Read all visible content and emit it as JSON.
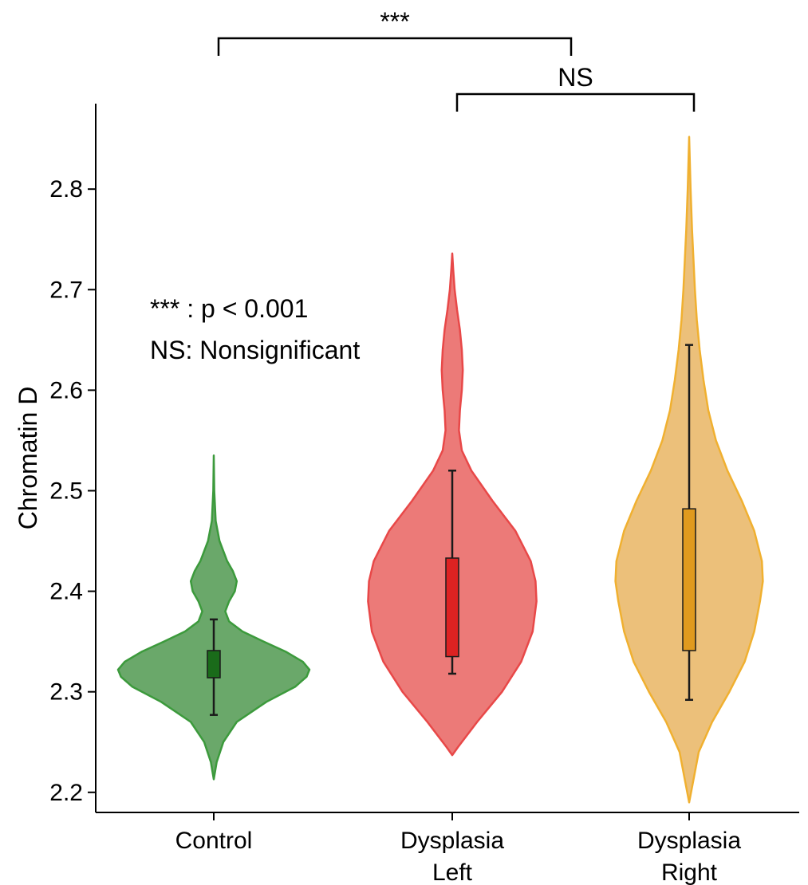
{
  "chart_data": {
    "type": "violin",
    "ylabel": "Chromatin D",
    "xlabel": "",
    "ylim": [
      2.18,
      2.885
    ],
    "yticks": [
      2.2,
      2.3,
      2.4,
      2.5,
      2.6,
      2.7,
      2.8
    ],
    "ytick_labels": [
      "2.2",
      "2.3",
      "2.4",
      "2.5",
      "2.6",
      "2.7",
      "2.8"
    ],
    "grid": false,
    "groups": [
      {
        "label_lines": [
          "Control"
        ],
        "fill": "#6aa86a",
        "edge": "#3c9a3c",
        "box_color": "#1a6b1a",
        "whisker_low": 2.277,
        "q1": 2.314,
        "median": 2.326,
        "q3": 2.341,
        "whisker_high": 2.372,
        "density": [
          [
            2.213,
            0
          ],
          [
            2.23,
            0.03
          ],
          [
            2.25,
            0.1
          ],
          [
            2.27,
            0.24
          ],
          [
            2.29,
            0.55
          ],
          [
            2.305,
            0.85
          ],
          [
            2.315,
            0.97
          ],
          [
            2.322,
            1.0
          ],
          [
            2.33,
            0.93
          ],
          [
            2.34,
            0.75
          ],
          [
            2.35,
            0.52
          ],
          [
            2.36,
            0.3
          ],
          [
            2.37,
            0.16
          ],
          [
            2.38,
            0.12
          ],
          [
            2.39,
            0.16
          ],
          [
            2.4,
            0.22
          ],
          [
            2.41,
            0.24
          ],
          [
            2.42,
            0.2
          ],
          [
            2.43,
            0.14
          ],
          [
            2.45,
            0.06
          ],
          [
            2.47,
            0.02
          ],
          [
            2.5,
            0.005
          ],
          [
            2.535,
            0
          ]
        ]
      },
      {
        "label_lines": [
          "Dysplasia",
          "Left"
        ],
        "fill": "#ec7a78",
        "edge": "#e84848",
        "box_color": "#dd2222",
        "whisker_low": 2.318,
        "q1": 2.335,
        "median": 2.38,
        "q3": 2.433,
        "whisker_high": 2.52,
        "density": [
          [
            2.237,
            0
          ],
          [
            2.245,
            0.06
          ],
          [
            2.27,
            0.26
          ],
          [
            2.3,
            0.52
          ],
          [
            2.33,
            0.72
          ],
          [
            2.36,
            0.84
          ],
          [
            2.39,
            0.88
          ],
          [
            2.41,
            0.87
          ],
          [
            2.43,
            0.82
          ],
          [
            2.46,
            0.66
          ],
          [
            2.49,
            0.42
          ],
          [
            2.52,
            0.2
          ],
          [
            2.54,
            0.1
          ],
          [
            2.56,
            0.07
          ],
          [
            2.58,
            0.08
          ],
          [
            2.6,
            0.1
          ],
          [
            2.62,
            0.11
          ],
          [
            2.64,
            0.1
          ],
          [
            2.66,
            0.08
          ],
          [
            2.68,
            0.05
          ],
          [
            2.7,
            0.025
          ],
          [
            2.72,
            0.01
          ],
          [
            2.736,
            0
          ]
        ]
      },
      {
        "label_lines": [
          "Dysplasia",
          "Right"
        ],
        "fill": "#ecc07a",
        "edge": "#f0b030",
        "box_color": "#e09a1e",
        "whisker_low": 2.292,
        "q1": 2.341,
        "median": 2.41,
        "q3": 2.482,
        "whisker_high": 2.645,
        "density": [
          [
            2.19,
            0
          ],
          [
            2.21,
            0.04
          ],
          [
            2.24,
            0.1
          ],
          [
            2.27,
            0.24
          ],
          [
            2.3,
            0.42
          ],
          [
            2.33,
            0.58
          ],
          [
            2.36,
            0.68
          ],
          [
            2.39,
            0.74
          ],
          [
            2.41,
            0.77
          ],
          [
            2.43,
            0.76
          ],
          [
            2.46,
            0.68
          ],
          [
            2.49,
            0.55
          ],
          [
            2.52,
            0.4
          ],
          [
            2.55,
            0.28
          ],
          [
            2.58,
            0.2
          ],
          [
            2.61,
            0.15
          ],
          [
            2.64,
            0.11
          ],
          [
            2.67,
            0.08
          ],
          [
            2.7,
            0.06
          ],
          [
            2.73,
            0.045
          ],
          [
            2.76,
            0.03
          ],
          [
            2.8,
            0.015
          ],
          [
            2.852,
            0
          ]
        ]
      }
    ],
    "comparisons": [
      {
        "from": 0,
        "to": 2,
        "label": "***"
      },
      {
        "from": 1,
        "to": 2,
        "label": "NS"
      }
    ],
    "legend_notes": [
      "*** : p < 0.001",
      "NS: Nonsignificant"
    ]
  }
}
